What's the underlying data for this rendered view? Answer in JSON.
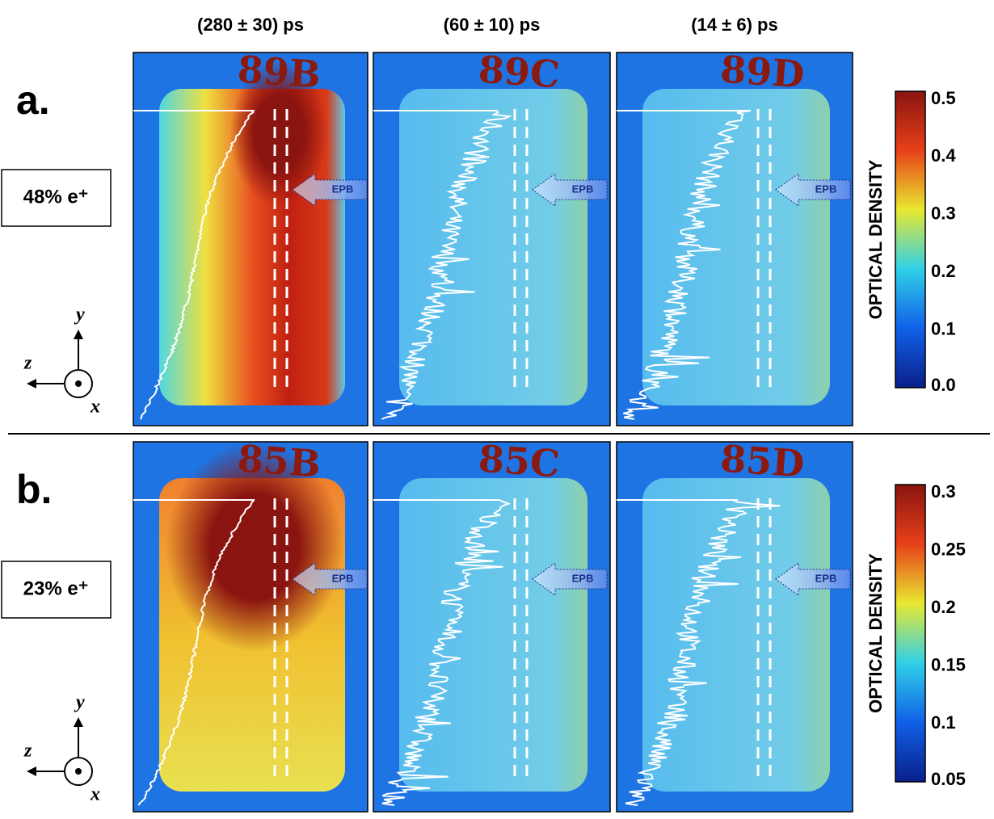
{
  "columns": [
    "(280 ± 30) ps",
    "(60 ± 10) ps",
    "(14 ± 6) ps"
  ],
  "rows": [
    {
      "label": "a.",
      "positron": "48% e⁺",
      "colorbar": {
        "title": "OPTICAL DENSITY",
        "ticks": [
          "0.5",
          "0.4",
          "0.3",
          "0.2",
          "0.1",
          "0.0"
        ]
      },
      "panels": [
        {
          "tag": "89B",
          "arrow": "EPB"
        },
        {
          "tag": "89C",
          "arrow": "EPB"
        },
        {
          "tag": "89D",
          "arrow": "EPB"
        }
      ],
      "axes": {
        "y": "y",
        "z": "z",
        "x": "x"
      }
    },
    {
      "label": "b.",
      "positron": "23% e⁺",
      "colorbar": {
        "title": "OPTICAL DENSITY",
        "ticks": [
          "0.3",
          "0.25",
          "0.2",
          "0.15",
          "0.1",
          "0.05"
        ]
      },
      "panels": [
        {
          "tag": "85B",
          "arrow": "EPB"
        },
        {
          "tag": "85C",
          "arrow": "EPB"
        },
        {
          "tag": "85D",
          "arrow": "EPB"
        }
      ],
      "axes": {
        "y": "y",
        "z": "z",
        "x": "x"
      }
    }
  ]
}
